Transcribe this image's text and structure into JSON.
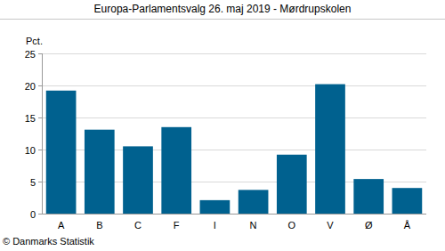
{
  "chart_data": {
    "type": "bar",
    "title": "Europa-Parlamentsvalg 26. maj 2019 - Mørdrupskolen",
    "ylabel": "Pct.",
    "source": "© Danmarks Statistik",
    "categories": [
      "A",
      "B",
      "C",
      "F",
      "I",
      "N",
      "O",
      "V",
      "Ø",
      "Å"
    ],
    "values": [
      19.2,
      13.1,
      10.5,
      13.5,
      2.1,
      3.7,
      9.2,
      20.2,
      5.4,
      4.0
    ],
    "color": "#00618f",
    "ylim": [
      0,
      25
    ],
    "yticks": [
      0,
      5,
      10,
      15,
      20,
      25
    ],
    "grid": true
  }
}
